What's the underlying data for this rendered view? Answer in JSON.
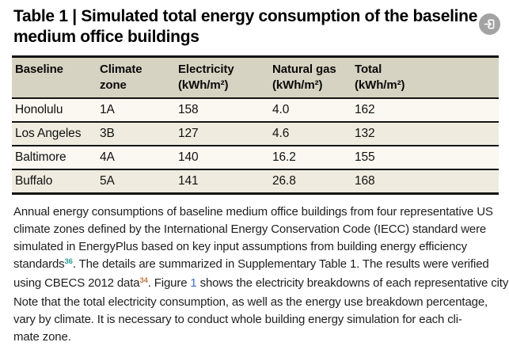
{
  "title": {
    "line1": "Table 1 | Simulated total energy consumption of the baseline",
    "line2": "medium office buildings"
  },
  "expand_button": {
    "icon": "open-in-icon"
  },
  "table": {
    "columns": [
      {
        "label": "Baseline",
        "unit": ""
      },
      {
        "label": "Climate",
        "unit": "zone"
      },
      {
        "label": "Electricity",
        "unit": "(kWh/m²)"
      },
      {
        "label": "Natural gas",
        "unit": "(kWh/m²)"
      },
      {
        "label": "Total",
        "unit": "(kWh/m²)"
      }
    ],
    "rows": [
      [
        "Honolulu",
        "1A",
        "158",
        "4.0",
        "162"
      ],
      [
        "Los Angeles",
        "3B",
        "127",
        "4.6",
        "132"
      ],
      [
        "Baltimore",
        "4A",
        "140",
        "16.2",
        "155"
      ],
      [
        "Buffalo",
        "5A",
        "141",
        "26.8",
        "168"
      ]
    ]
  },
  "caption": {
    "lines": [
      [
        {
          "t": "Annual energy consumptions of baseline medium office buildings from four representative US",
          "s": "plain"
        }
      ],
      [
        {
          "t": "climate zones defined by the International Energy Conservation Code (IECC) standard were",
          "s": "plain"
        }
      ],
      [
        {
          "t": "simulated in EnergyPlus based on key input assumptions from building energy efficiency",
          "s": "plain"
        }
      ],
      [
        {
          "t": "standards",
          "s": "plain"
        },
        {
          "t": "36",
          "s": "sup-teal"
        },
        {
          "t": ". The details are summarized in Supplementary Table 1. The results were verified",
          "s": "plain"
        }
      ],
      [
        {
          "t": "using CBECS 2012 data",
          "s": "plain"
        },
        {
          "t": "34",
          "s": "sup-orange"
        },
        {
          "t": ". Figure ",
          "s": "plain"
        },
        {
          "t": "1",
          "s": "link"
        },
        {
          "t": " shows the electricity breakdowns of each representative city",
          "s": "plain"
        }
      ],
      [
        {
          "t": "Note that the total electricity consumption, as well as the energy use breakdown percentage,",
          "s": "plain"
        }
      ],
      [
        {
          "t": "vary by climate. It is necessary to conduct whole building energy simulation for each cli-",
          "s": "plain"
        }
      ],
      [
        {
          "t": "mate zone.",
          "s": "plain"
        }
      ]
    ]
  },
  "colors": {
    "header_bg": "#d7d3c2",
    "row_light": "#faf8f1",
    "row_shaded": "#efecdf",
    "table_border": "#141414",
    "reference_teal": "#2b9b94",
    "reference_orange": "#bf7a3d",
    "figure_link_blue": "#3f72c8",
    "expand_button_gray": "#808080"
  },
  "chart_data": {
    "type": "table",
    "title": "Table 1 | Simulated total energy consumption of the baseline medium office buildings",
    "columns": [
      "Baseline",
      "Climate zone",
      "Electricity (kWh/m²)",
      "Natural gas (kWh/m²)",
      "Total (kWh/m²)"
    ],
    "rows": [
      [
        "Honolulu",
        "1A",
        158,
        4.0,
        162
      ],
      [
        "Los Angeles",
        "3B",
        127,
        4.6,
        132
      ],
      [
        "Baltimore",
        "4A",
        140,
        16.2,
        155
      ],
      [
        "Buffalo",
        "5A",
        141,
        26.8,
        168
      ]
    ]
  }
}
